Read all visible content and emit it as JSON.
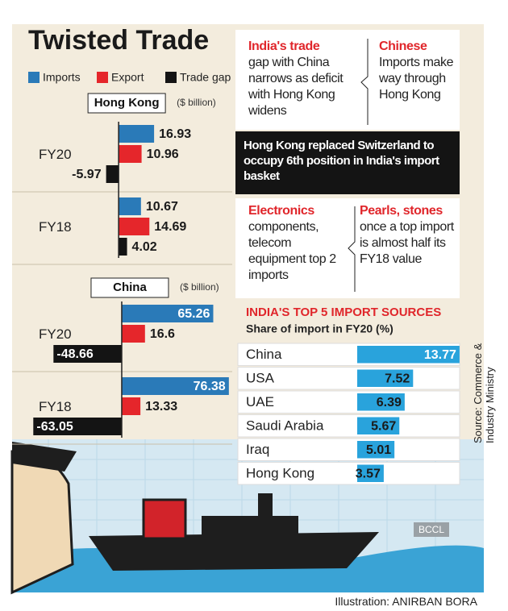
{
  "title": "Twisted Trade",
  "chart_data": [
    {
      "type": "groupedbar",
      "title": "Hong Kong",
      "unit": "($ billion)",
      "categories": [
        "FY20",
        "FY18"
      ],
      "series": [
        {
          "name": "Imports",
          "color": "#2a7ab8",
          "values": [
            16.93,
            10.67
          ]
        },
        {
          "name": "Export",
          "color": "#e5262b",
          "values": [
            10.96,
            14.69
          ]
        },
        {
          "name": "Trade gap",
          "color": "#141414",
          "values": [
            -5.97,
            4.02
          ]
        }
      ],
      "xlim": [
        -42,
        55
      ]
    },
    {
      "type": "groupedbar",
      "title": "China",
      "unit": "($ billion)",
      "categories": [
        "FY20",
        "FY18"
      ],
      "series": [
        {
          "color": "#2a7ab8",
          "values": [
            65.26,
            76.38
          ]
        },
        {
          "color": "#e5262b",
          "values": [
            16.6,
            13.33
          ]
        },
        {
          "color": "#141414",
          "values": [
            -48.66,
            -63.05
          ]
        }
      ],
      "xlim": [
        -65,
        80
      ]
    },
    {
      "type": "bar",
      "title": "INDIA'S TOP 5 IMPORT SOURCES",
      "subtitle": "Share of import in FY20 (%)",
      "categories": [
        "China",
        "USA",
        "UAE",
        "Saudi Arabia",
        "Iraq",
        "Hong Kong"
      ],
      "values": [
        13.77,
        7.52,
        6.39,
        5.67,
        5.01,
        3.57
      ],
      "color": "#29a3dc",
      "xlim": [
        0,
        14
      ]
    }
  ],
  "panels": [
    {
      "heading": "India's trade",
      "text": "gap with China narrows as deficit with Hong Kong widens"
    },
    {
      "heading": "Chinese",
      "text": "Imports make way through Hong Kong"
    },
    {
      "heading": "Electronics",
      "text": "components, telecom equipment top 2 imports"
    },
    {
      "heading": "Pearls, stones",
      "text": "once a top import is almost half its FY18 value"
    }
  ],
  "banner": "Hong Kong replaced Switzerland to occupy 6th position in India's import basket",
  "source": "Source: Commerce & Industry Ministry",
  "credit": "Illustration: ANIRBAN BORA",
  "watermark": "BCCL"
}
